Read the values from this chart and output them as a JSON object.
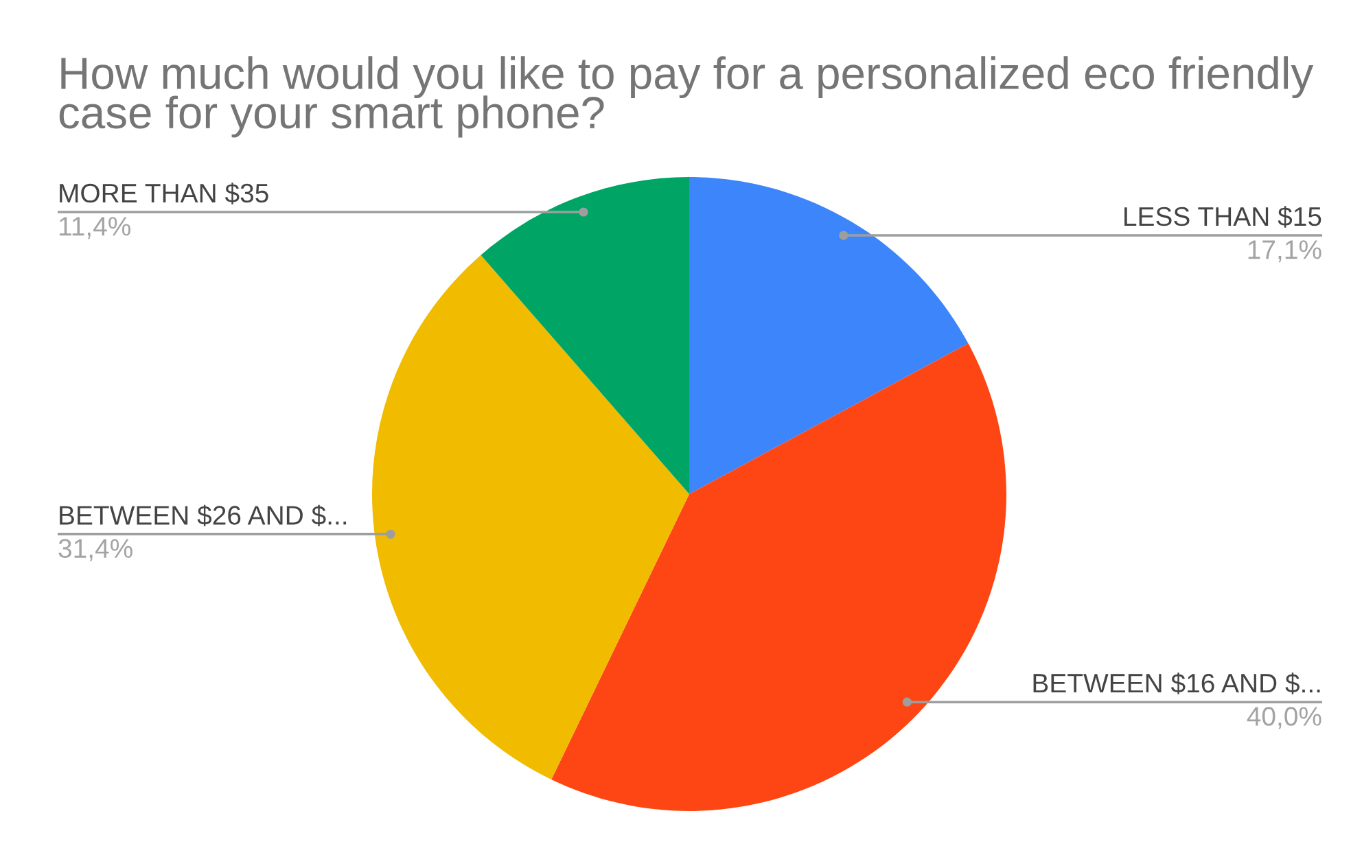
{
  "chart_data": {
    "type": "pie",
    "title": "How much would you like to pay for a personalized eco friendly case for your smart phone?",
    "categories": [
      "LESS THAN $15",
      "BETWEEN $16 AND $...",
      "BETWEEN $26 AND $...",
      "MORE THAN $35"
    ],
    "values": [
      17.1,
      40.0,
      31.4,
      11.4
    ],
    "value_labels": [
      "17,1%",
      "40,0%",
      "31,4%",
      "11,4%"
    ],
    "colors": [
      "#3d85fb",
      "#fe4614",
      "#f1bb00",
      "#00a565"
    ]
  }
}
